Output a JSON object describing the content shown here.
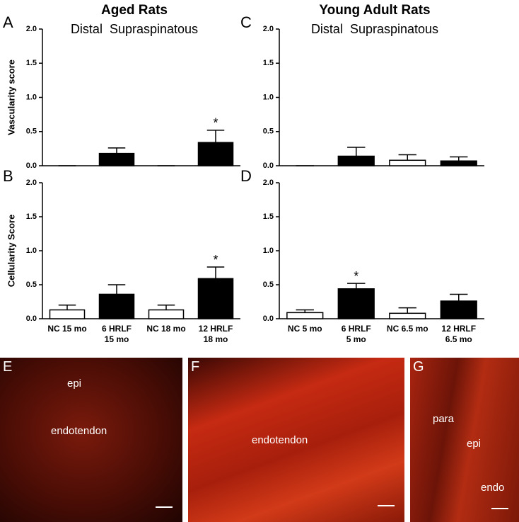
{
  "chart_data": [
    {
      "type": "bar",
      "panel": "A",
      "title": "Aged Rats",
      "subtitle": "Distal  Supraspinatous",
      "ylabel": "Vascularity score",
      "categories": [
        null,
        null,
        null,
        null
      ],
      "values": [
        0,
        0.18,
        0,
        0.34
      ],
      "errors": [
        0,
        0.08,
        0,
        0.18
      ],
      "colors": [
        "#ffffff",
        "#000000",
        "#ffffff",
        "#000000"
      ],
      "significant": [
        false,
        false,
        false,
        true
      ],
      "significance_mark": "*",
      "ylim": [
        0,
        2
      ],
      "yticks": [
        {
          "value": 0,
          "label": "0.0"
        },
        0.5,
        {
          "value": 1,
          "label": "1.0"
        },
        1.5,
        {
          "value": 2,
          "label": "2.0"
        }
      ]
    },
    {
      "type": "bar",
      "panel": "B",
      "ylabel": "Cellularity Score",
      "categories": [
        "NC 15 mo",
        "6 HRLF\n15 mo",
        "NC 18 mo",
        "12 HRLF\n18 mo"
      ],
      "values": [
        0.13,
        0.36,
        0.13,
        0.59
      ],
      "errors": [
        0.07,
        0.14,
        0.07,
        0.17
      ],
      "colors": [
        "#ffffff",
        "#000000",
        "#ffffff",
        "#000000"
      ],
      "significant": [
        false,
        false,
        false,
        true
      ],
      "significance_mark": "*",
      "ylim": [
        0,
        2
      ],
      "yticks": [
        {
          "value": 0,
          "label": "0.0"
        },
        0.5,
        {
          "value": 1,
          "label": "1.0"
        },
        1.5,
        {
          "value": 2,
          "label": "2.0"
        }
      ]
    },
    {
      "type": "bar",
      "panel": "C",
      "title": "Young Adult Rats",
      "subtitle": "Distal  Supraspinatous",
      "categories": [
        null,
        null,
        null,
        null
      ],
      "values": [
        0,
        0.14,
        0.08,
        0.07
      ],
      "errors": [
        0,
        0.13,
        0.08,
        0.06
      ],
      "colors": [
        "#ffffff",
        "#000000",
        "#ffffff",
        "#000000"
      ],
      "significant": [
        false,
        false,
        false,
        false
      ],
      "significance_mark": "*",
      "ylim": [
        0,
        2
      ],
      "yticks": [
        {
          "value": 0,
          "label": "0.0"
        },
        0.5,
        {
          "value": 1,
          "label": "1.0"
        },
        1.5,
        {
          "value": 2,
          "label": "2.0"
        }
      ]
    },
    {
      "type": "bar",
      "panel": "D",
      "categories": [
        "NC 5 mo",
        "6 HRLF\n5 mo",
        "NC 6.5 mo",
        "12 HRLF\n6.5 mo"
      ],
      "values": [
        0.09,
        0.44,
        0.08,
        0.26
      ],
      "errors": [
        0.04,
        0.08,
        0.08,
        0.1
      ],
      "colors": [
        "#ffffff",
        "#000000",
        "#ffffff",
        "#000000"
      ],
      "significant": [
        false,
        true,
        false,
        false
      ],
      "significance_mark": "*",
      "ylim": [
        0,
        2
      ],
      "yticks": [
        {
          "value": 0,
          "label": "0.0"
        },
        0.5,
        {
          "value": 1,
          "label": "1.0"
        },
        1.5,
        {
          "value": 2,
          "label": "2.0"
        }
      ]
    }
  ],
  "images": [
    {
      "panel": "E",
      "labels": [
        "epi",
        "endotendon"
      ]
    },
    {
      "panel": "F",
      "labels": [
        "endotendon"
      ]
    },
    {
      "panel": "G",
      "labels": [
        "para",
        "epi",
        "endo"
      ]
    }
  ]
}
